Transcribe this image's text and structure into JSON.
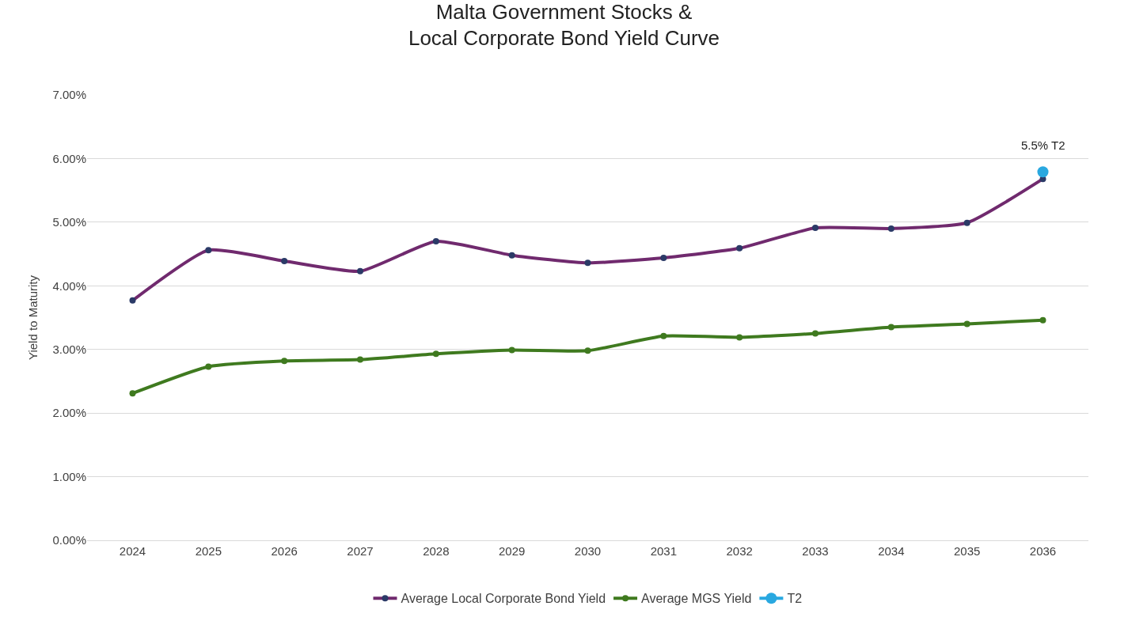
{
  "chart_data": {
    "type": "line",
    "title": "Malta Government Stocks &\nLocal Corporate Bond Yield Curve",
    "ylabel": "Yield to Maturity",
    "categories": [
      "2024",
      "2025",
      "2026",
      "2027",
      "2028",
      "2029",
      "2030",
      "2031",
      "2032",
      "2033",
      "2034",
      "2035",
      "2036"
    ],
    "series": [
      {
        "name": "Average Local Corporate Bond Yield",
        "color": "#702a6e",
        "values": [
          3.77,
          4.56,
          4.39,
          4.23,
          4.7,
          4.48,
          4.36,
          4.44,
          4.59,
          4.91,
          4.9,
          4.99,
          5.68
        ]
      },
      {
        "name": "Average MGS Yield",
        "color": "#3f7a1f",
        "values": [
          2.31,
          2.73,
          2.82,
          2.84,
          2.93,
          2.99,
          2.98,
          3.21,
          3.19,
          3.25,
          3.35,
          3.4,
          3.46
        ]
      },
      {
        "name": "T2",
        "color": "#29a8e0",
        "values": [
          null,
          null,
          null,
          null,
          null,
          null,
          null,
          null,
          null,
          null,
          null,
          null,
          5.79
        ]
      }
    ],
    "ylim": [
      0,
      7
    ],
    "yticks": [
      {
        "value": 0,
        "label": "0.00%"
      },
      {
        "value": 1,
        "label": "1.00%"
      },
      {
        "value": 2,
        "label": "2.00%"
      },
      {
        "value": 3,
        "label": "3.00%"
      },
      {
        "value": 4,
        "label": "4.00%"
      },
      {
        "value": 5,
        "label": "5.00%"
      },
      {
        "value": 6,
        "label": "6.00%"
      },
      {
        "value": 7,
        "label": "7.00%"
      }
    ],
    "grid": "y",
    "legend": "bottom",
    "marker": "circle",
    "line_style": "solid",
    "annotations": [
      {
        "text": "5.5% T2",
        "x": "2036",
        "y": 5.79
      }
    ]
  }
}
